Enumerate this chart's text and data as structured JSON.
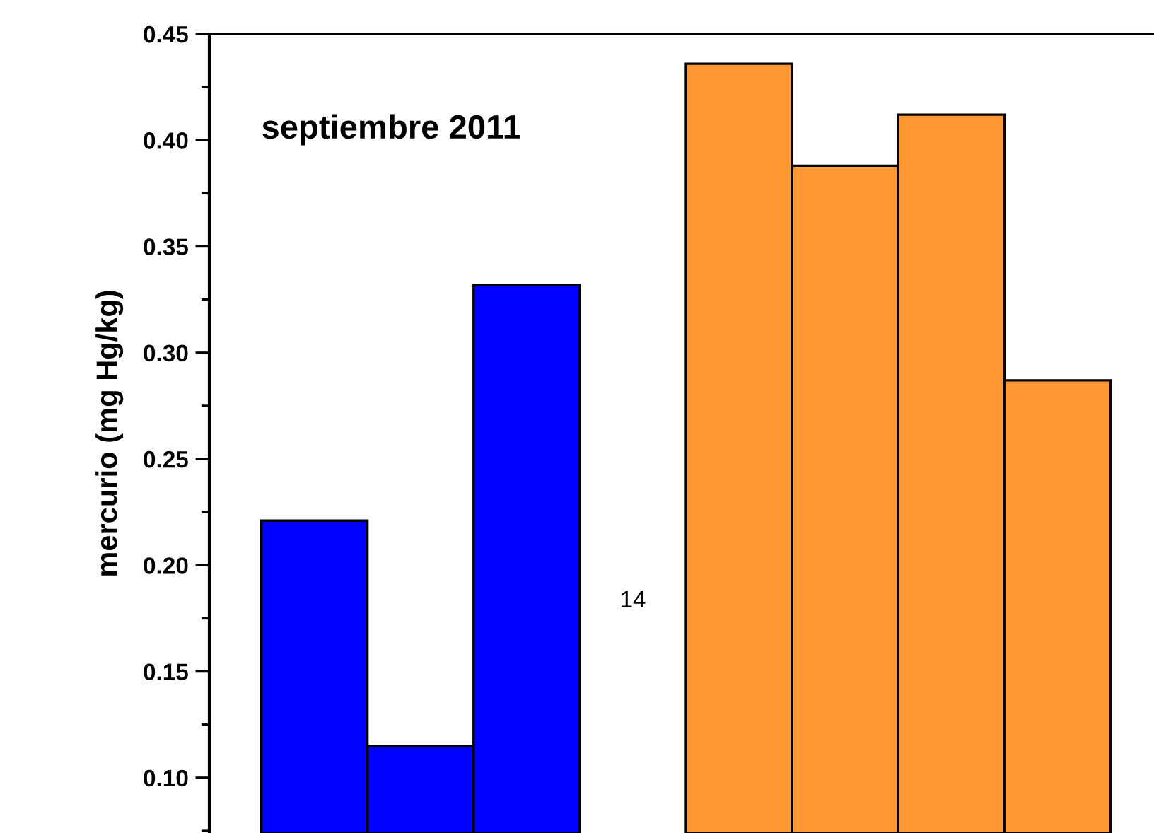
{
  "chart_data": {
    "type": "bar",
    "title": "septiembre 2011",
    "ylabel": "mercurio (mg Hg/kg)",
    "categories": [
      null,
      null,
      null,
      null,
      null,
      null,
      null,
      null
    ],
    "values": [
      0.221,
      0.115,
      0.332,
      null,
      0.436,
      0.388,
      0.412,
      0.287
    ],
    "colors": [
      "#0000ff",
      "#0000ff",
      "#0000ff",
      "#ffffff",
      "#ff9933",
      "#ff9933",
      "#ff9933",
      "#ff9933"
    ],
    "ylim": [
      0.074,
      0.45
    ],
    "yticks": [
      {
        "value": 0.1,
        "label": "0.10"
      },
      0.15,
      {
        "value": 0.2,
        "label": "0.20"
      },
      0.25,
      {
        "value": 0.3,
        "label": "0.30"
      },
      0.35,
      {
        "value": 0.4,
        "label": "0.40"
      },
      0.45
    ],
    "tick_labels": "y",
    "grid": false,
    "annotations": [
      "14"
    ]
  }
}
